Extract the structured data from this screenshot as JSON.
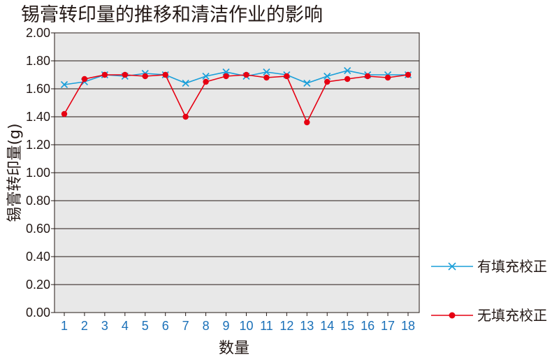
{
  "chart_data": {
    "type": "line",
    "title": "锡膏转印量的推移和清洁作业的影响",
    "xlabel": "数量",
    "ylabel": "锡膏转印量(g)",
    "ylim": [
      0,
      2
    ],
    "ytick_labels": [
      "0.00",
      "0.20",
      "0.40",
      "0.60",
      "0.80",
      "1.00",
      "1.20",
      "1.40",
      "1.60",
      "1.80",
      "2.00"
    ],
    "categories": [
      "1",
      "2",
      "3",
      "4",
      "5",
      "6",
      "7",
      "8",
      "9",
      "10",
      "11",
      "12",
      "13",
      "14",
      "15",
      "16",
      "17",
      "18"
    ],
    "grid": true,
    "legend_position": "right",
    "series": [
      {
        "name": "有填充校正",
        "color": "#1a9fd9",
        "marker": "x",
        "values": [
          1.63,
          1.65,
          1.7,
          1.69,
          1.71,
          1.7,
          1.64,
          1.69,
          1.72,
          1.69,
          1.72,
          1.7,
          1.64,
          1.69,
          1.73,
          1.7,
          1.7,
          1.7
        ]
      },
      {
        "name": "无填充校正",
        "color": "#e60012",
        "marker": "circle",
        "values": [
          1.42,
          1.67,
          1.7,
          1.7,
          1.69,
          1.7,
          1.4,
          1.65,
          1.69,
          1.7,
          1.68,
          1.69,
          1.36,
          1.65,
          1.67,
          1.69,
          1.68,
          1.7
        ]
      }
    ]
  }
}
